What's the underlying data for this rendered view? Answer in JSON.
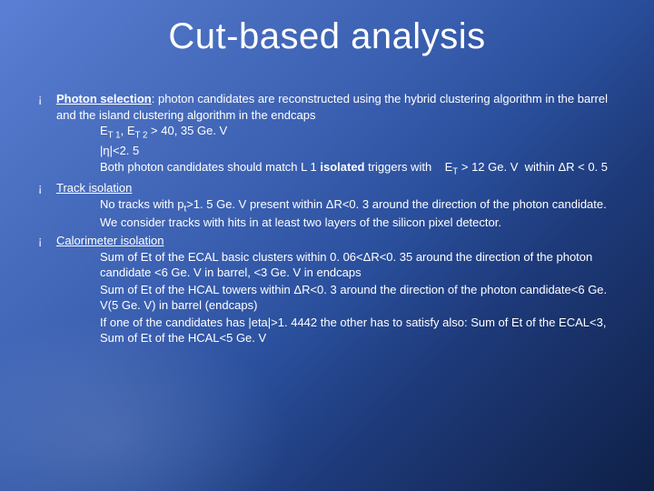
{
  "title": "Cut-based analysis",
  "sections": [
    {
      "heading_html": "<span class='und bold'>Photon selection</span>: photon candidates are reconstructed using the hybrid clustering algorithm in the barrel and the island clustering algorithm in the endcaps",
      "items": [
        "E<sub>T 1</sub>, E<sub>T 2</sub> > 40, 35 Ge. V",
        "|η|<2. 5",
        "Both photon candidates should match L 1 <span class='bold'>isolated</span> triggers with &nbsp;&nbsp;&nbsp;E<sub>T</sub> > 12 Ge. V &nbsp;within ΔR < 0. 5"
      ]
    },
    {
      "heading_html": "<span class='und'>Track isolation</span>",
      "items": [
        "No tracks with p<sub>t</sub>>1. 5 Ge. V present within ΔR<0. 3 around the direction of the photon candidate. We consider tracks with hits in at least two layers of the silicon pixel detector."
      ]
    },
    {
      "heading_html": "<span class='und'>Calorimeter isolation</span>",
      "items": [
        "Sum of Et of the ECAL basic clusters within 0. 06<ΔR<0. 35 around the direction of the photon candidate <6 Ge. V in barrel, <3 Ge. V in endcaps",
        "Sum of Et of the HCAL towers within ΔR<0. 3 around the direction of the photon candidate<6 Ge. V(5 Ge. V) in barrel (endcaps)",
        "If one of the candidates has |eta|>1. 4442 the other has to satisfy also: Sum of Et of the ECAL<3, Sum of Et of the HCAL<5 Ge. V"
      ]
    }
  ],
  "style": {
    "title_fontsize": 40,
    "body_fontsize": 13,
    "text_color": "#ffffff",
    "bg_gradient": [
      "#5a7fd4",
      "#4a6fc0",
      "#3a5fb0",
      "#2a4f9c",
      "#1e3a7a",
      "#162d60",
      "#0f2048"
    ]
  }
}
